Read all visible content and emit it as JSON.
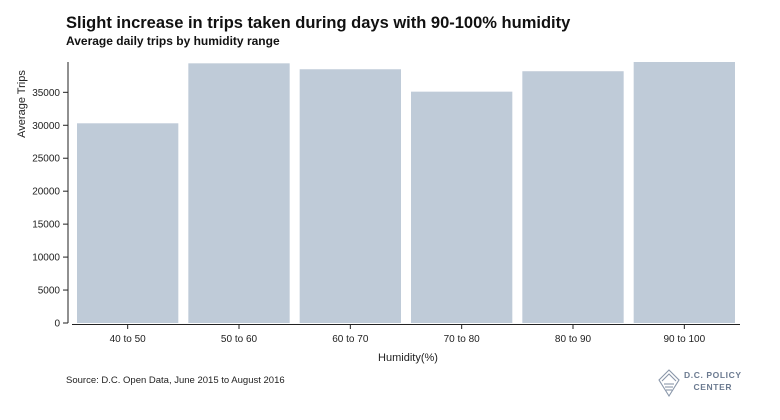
{
  "chart_data": {
    "type": "bar",
    "title": "Slight increase in trips taken during days with 90-100% humidity",
    "subtitle": "Average daily trips by humidity range",
    "categories": [
      "40 to 50",
      "50 to 60",
      "60 to 70",
      "70 to 80",
      "80 to 90",
      "90 to 100"
    ],
    "values": [
      30300,
      39400,
      38500,
      35100,
      38200,
      39600
    ],
    "xlabel": "Humidity(%)",
    "ylabel": "Average Trips",
    "ylim": [
      0,
      39600
    ],
    "yticks": [
      0,
      5000,
      10000,
      15000,
      20000,
      25000,
      30000,
      35000
    ],
    "grid": false,
    "bar_color": "#bfcbd8"
  },
  "source": "Source: D.C. Open Data, June 2015 to August 2016",
  "logo": {
    "line1": "D.C. POLICY",
    "line2": "CENTER",
    "color": "#6b7a90"
  }
}
